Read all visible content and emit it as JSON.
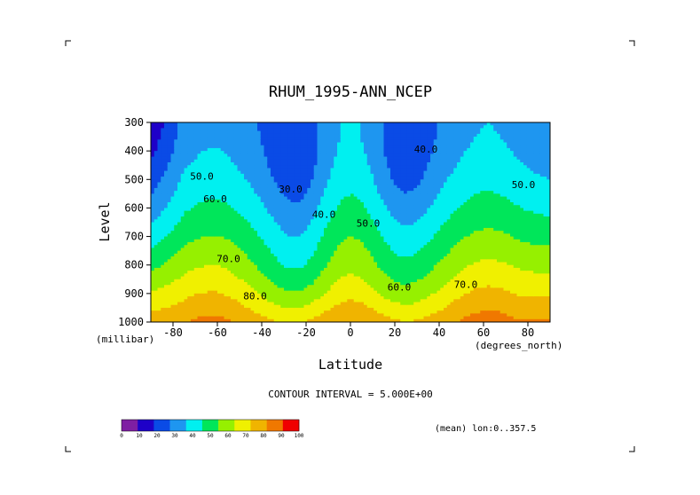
{
  "chart_data": {
    "type": "heatmap",
    "title": "RHUM_1995-ANN_NCEP",
    "xlabel": "Latitude",
    "xunits": "(degrees_north)",
    "ylabel": "Level",
    "yunits": "(millibar)",
    "x_ticks": [
      "-80",
      "-60",
      "-40",
      "-20",
      "0",
      "20",
      "40",
      "60",
      "80"
    ],
    "y_ticks": [
      "300",
      "400",
      "500",
      "600",
      "700",
      "800",
      "900",
      "1000"
    ],
    "xlim": [
      -90,
      90
    ],
    "ylim": [
      1000,
      300
    ],
    "contour_interval_text": "CONTOUR INTERVAL = 5.000E+00",
    "mean_text": "(mean) lon:0..357.5",
    "contour_labels": [
      {
        "text": "50.0",
        "lat": -67,
        "lev": 500
      },
      {
        "text": "60.0",
        "lat": -61,
        "lev": 580
      },
      {
        "text": "70.0",
        "lat": -55,
        "lev": 790
      },
      {
        "text": "80.0",
        "lat": -43,
        "lev": 920
      },
      {
        "text": "30.0",
        "lat": -27,
        "lev": 545
      },
      {
        "text": "40.0",
        "lat": -12,
        "lev": 635
      },
      {
        "text": "50.0",
        "lat": 8,
        "lev": 665
      },
      {
        "text": "40.0",
        "lat": 34,
        "lev": 405
      },
      {
        "text": "60.0",
        "lat": 22,
        "lev": 890
      },
      {
        "text": "70.0",
        "lat": 52,
        "lev": 880
      },
      {
        "text": "50.0",
        "lat": 78,
        "lev": 530
      }
    ],
    "colorbar": {
      "levels": [
        "0",
        "10",
        "20",
        "30",
        "40",
        "50",
        "60",
        "70",
        "80",
        "90",
        "100"
      ],
      "colors": [
        "#7f1fa3",
        "#1e00c8",
        "#0a4be6",
        "#1e96f0",
        "#00f0f0",
        "#00e65a",
        "#96f000",
        "#f0f000",
        "#f0b400",
        "#f07800",
        "#f00000"
      ]
    }
  }
}
